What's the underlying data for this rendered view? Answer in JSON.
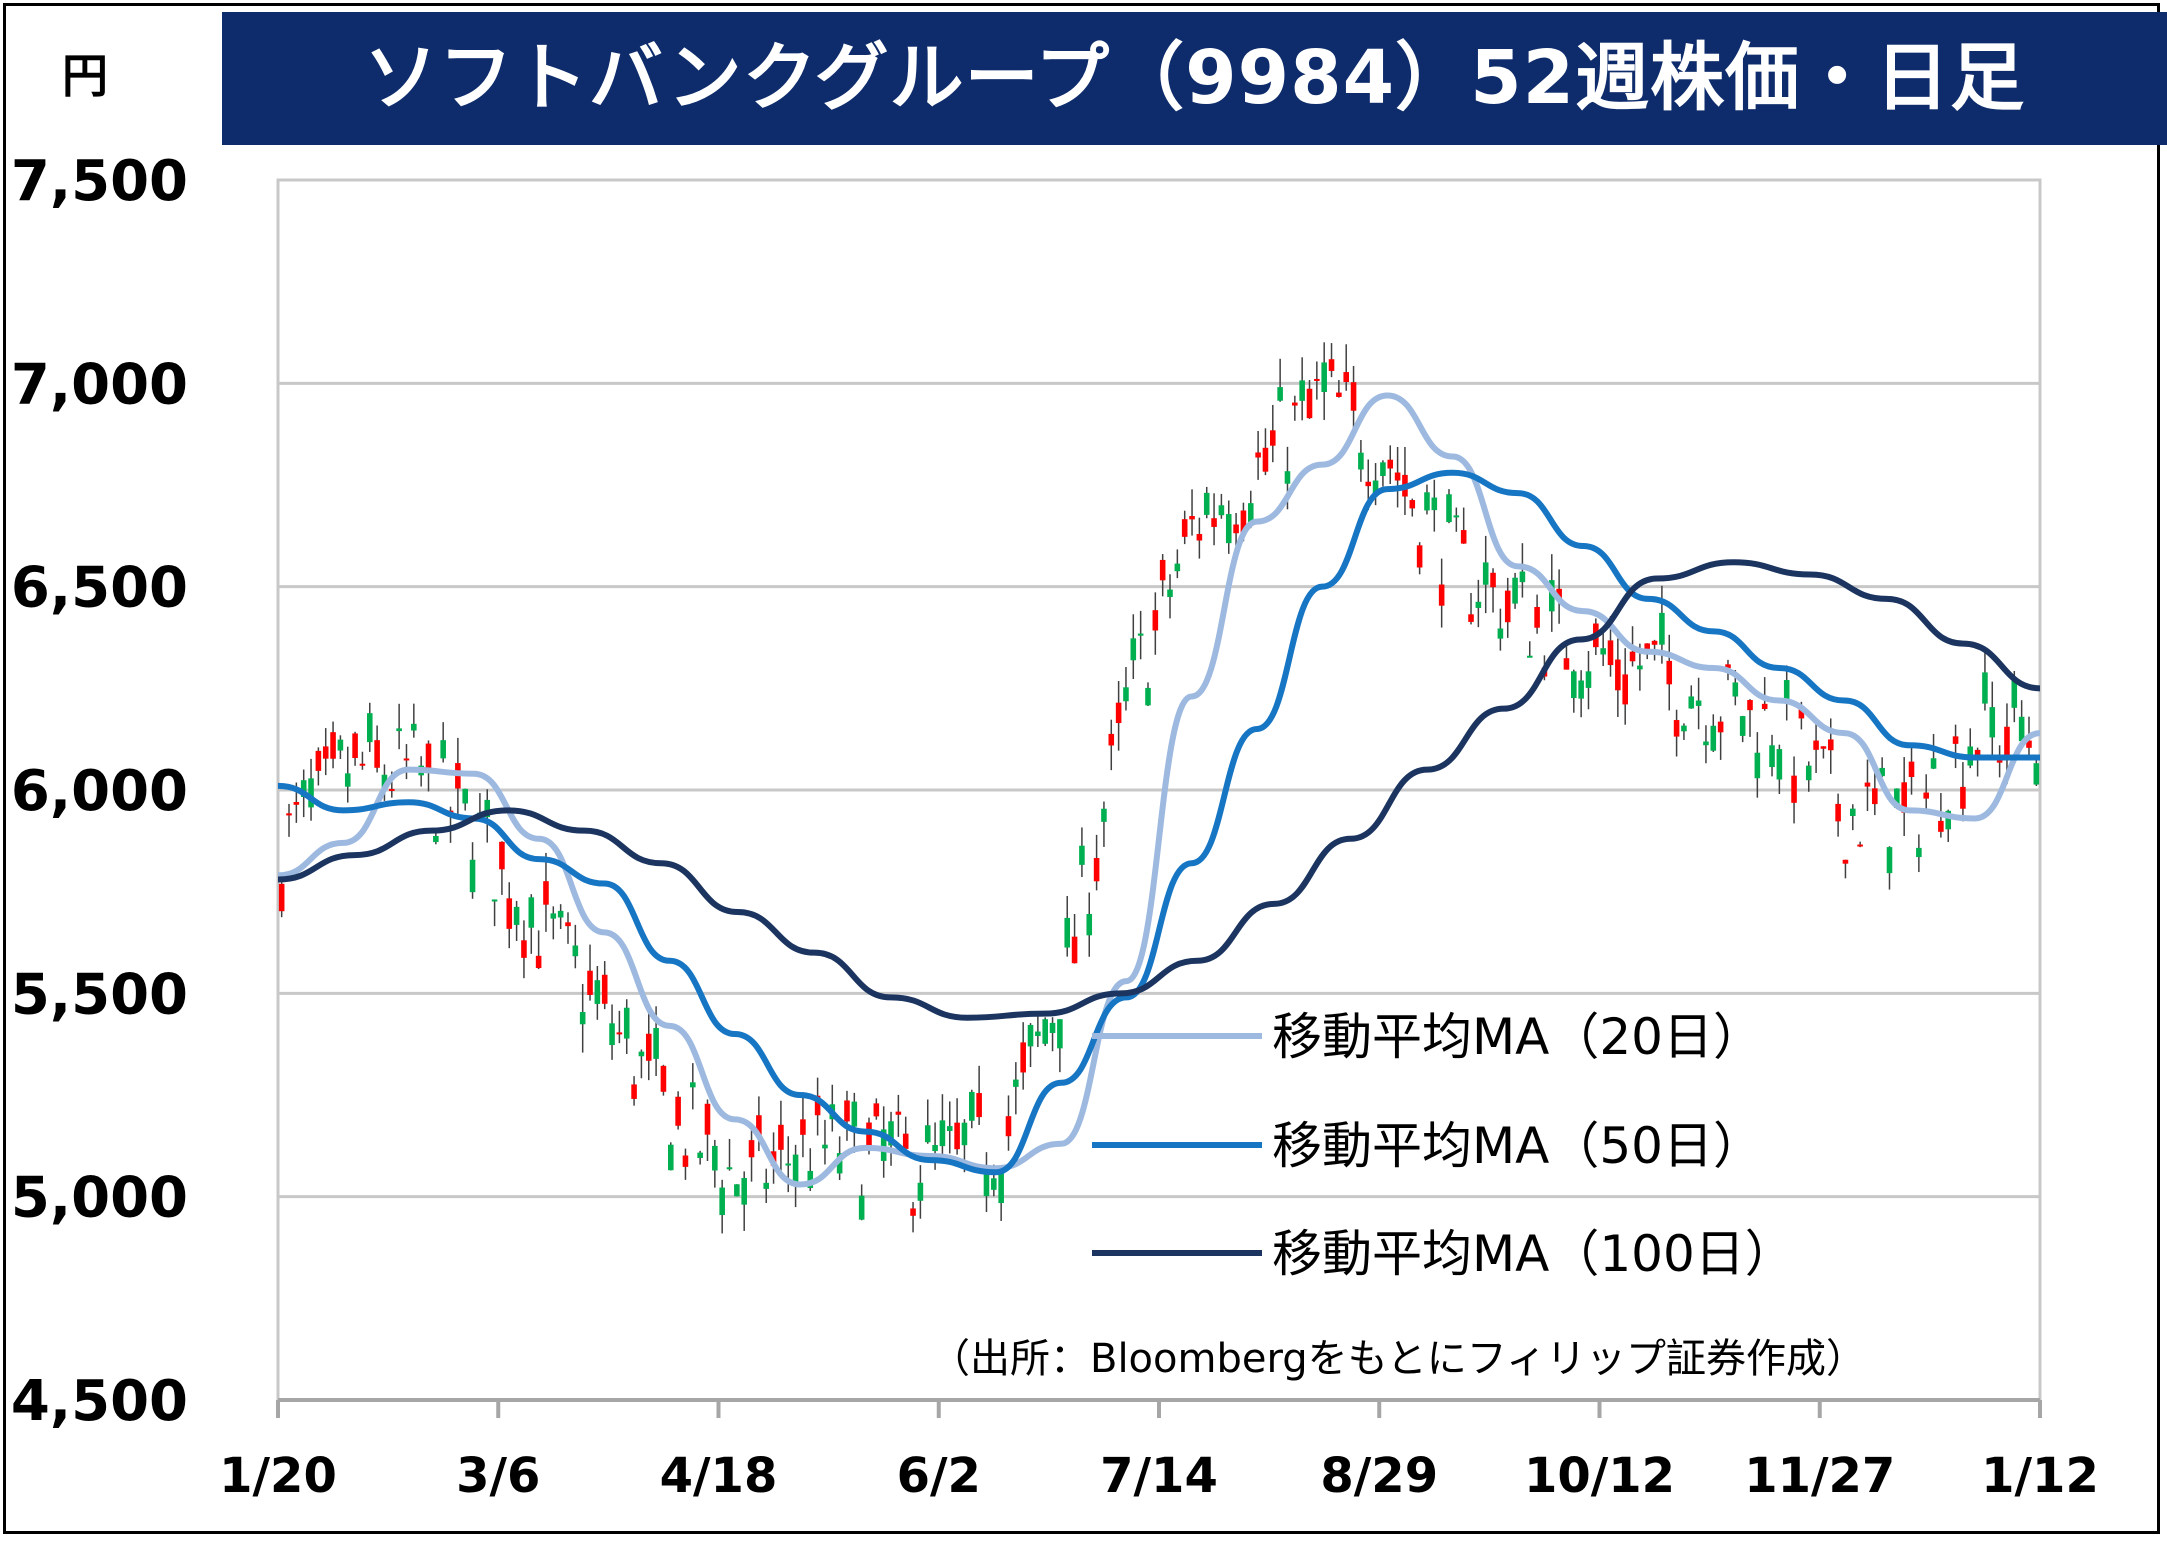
{
  "chart_data": {
    "type": "line",
    "title": "ソフトバンクグループ（9984）52週株価・日足",
    "ylabel": "円",
    "ylim": [
      4500,
      7500
    ],
    "yticks": [
      "7,500",
      "7,000",
      "6,500",
      "6,000",
      "5,500",
      "5,000",
      "4,500"
    ],
    "ytick_values": [
      7500,
      7000,
      6500,
      6000,
      5500,
      5000,
      4500
    ],
    "x_tick_labels": [
      "1/20",
      "3/6",
      "4/18",
      "6/2",
      "7/14",
      "8/29",
      "10/12",
      "11/27",
      "1/12"
    ],
    "grid": true,
    "legend_position": "bottom-right",
    "candle_colors": {
      "up": "#ff0000",
      "down": "#00b050"
    },
    "series": [
      {
        "name": "移動平均MA（20日）",
        "color": "#9db9e0",
        "values": [
          5790,
          5870,
          6050,
          6040,
          5880,
          5650,
          5420,
          5190,
          5030,
          5120,
          5100,
          5070,
          5130,
          5530,
          6230,
          6660,
          6800,
          6970,
          6820,
          6550,
          6440,
          6340,
          6300,
          6220,
          6140,
          5950,
          5930,
          6140
        ]
      },
      {
        "name": "移動平均MA（50日）",
        "color": "#1776c4",
        "values": [
          6010,
          5950,
          5970,
          5930,
          5830,
          5770,
          5580,
          5400,
          5250,
          5160,
          5090,
          5060,
          5280,
          5490,
          5820,
          6150,
          6500,
          6740,
          6780,
          6730,
          6600,
          6470,
          6390,
          6300,
          6220,
          6110,
          6080,
          6080
        ]
      },
      {
        "name": "移動平均MA（100日）",
        "color": "#1c3560",
        "values": [
          5780,
          5840,
          5900,
          5950,
          5900,
          5820,
          5700,
          5600,
          5490,
          5440,
          5450,
          5500,
          5580,
          5720,
          5880,
          6050,
          6200,
          6370,
          6520,
          6560,
          6530,
          6470,
          6360,
          6250
        ]
      }
    ],
    "annotation": "（出所：Bloombergをもとにフィリップ証券作成）"
  }
}
